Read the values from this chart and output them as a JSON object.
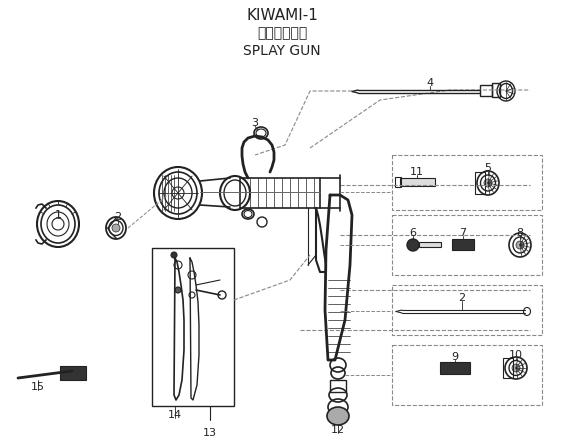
{
  "title_line1": "KIWAMI-1",
  "title_line2": "スプレーガン",
  "title_line3": "SPLAY GUN",
  "bg_color": "#ffffff",
  "lc": "#222222",
  "dc": "#888888",
  "figsize": [
    5.62,
    4.46
  ],
  "dpi": 100
}
